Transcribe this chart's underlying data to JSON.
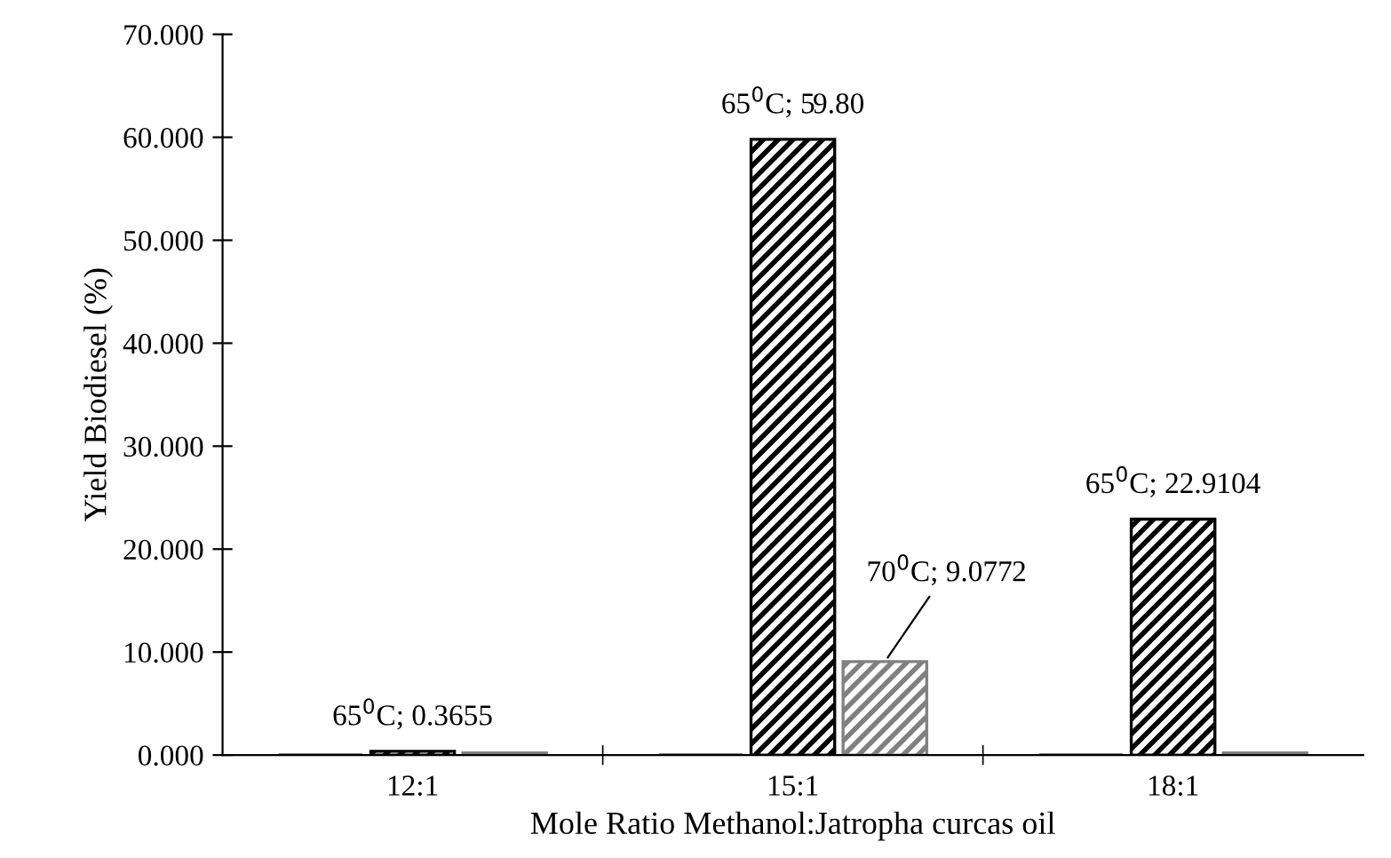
{
  "chart_data": {
    "type": "bar",
    "xlabel": "Mole Ratio Methanol:Jatropha curcas oil",
    "ylabel": "Yield Biodiesel (%)",
    "categories": [
      "12:1",
      "15:1",
      "18:1"
    ],
    "series": [
      {
        "color": "#000000",
        "values": [
          0,
          0,
          0
        ]
      },
      {
        "color": "#000000",
        "values": [
          0.3655,
          59.8,
          22.9104
        ],
        "value_labels": [
          "65$^{0}$C; 0.3655",
          "65$^{0}$C; 59.80",
          "65$^{0}$C; 22.9104"
        ]
      },
      {
        "color": "#808080",
        "values": [
          0.2,
          9.0772,
          0.2
        ],
        "value_labels": [
          null,
          "70$^{0}$C; 9.0772",
          null
        ]
      }
    ],
    "ylim": [
      0,
      70
    ],
    "yticks": [
      {
        "value": 0,
        "label": "0.000"
      },
      {
        "value": 10,
        "label": "10.000"
      },
      {
        "value": 20,
        "label": "20.000"
      },
      {
        "value": 30,
        "label": "30.000"
      },
      {
        "value": 40,
        "label": "40.000"
      },
      {
        "value": 50,
        "label": "50.000"
      },
      {
        "value": 60,
        "label": "60.000"
      },
      {
        "value": 70,
        "label": "70.000"
      }
    ],
    "grid": false,
    "legend": false
  }
}
